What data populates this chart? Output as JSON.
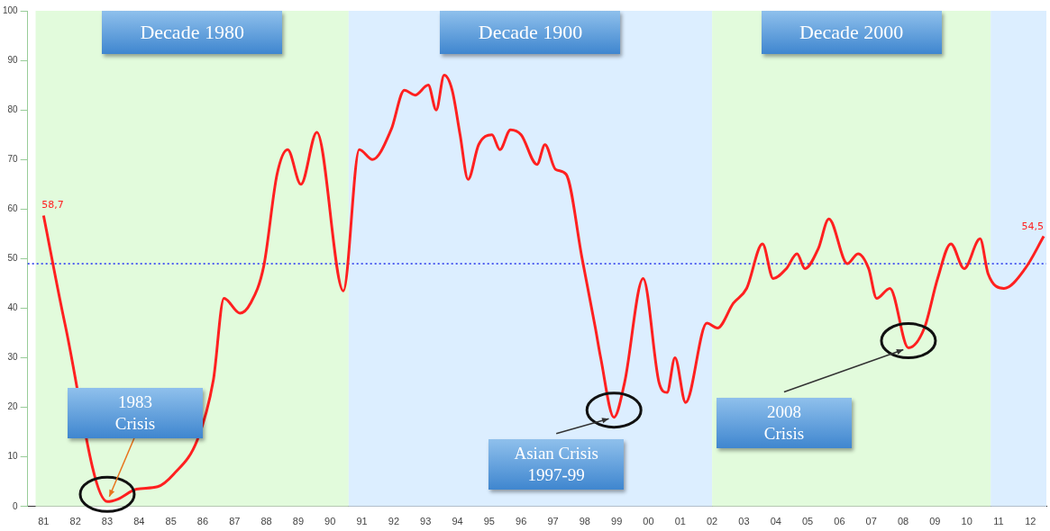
{
  "chart_data": {
    "type": "line",
    "x": [
      "1981-07",
      "1982-03",
      "1983-07",
      "1983-11",
      "1984-06",
      "1985-02",
      "1985-08",
      "1986-05",
      "1986-11",
      "1987-03",
      "1987-09",
      "1988-01",
      "1988-06",
      "1988-11",
      "1989-03",
      "1989-08",
      "1990-02",
      "1990-12",
      "1991-06",
      "1991-11",
      "1992-06",
      "1992-11",
      "1993-03",
      "1993-08",
      "1993-11",
      "1994-02",
      "1994-05",
      "1994-08",
      "1994-11",
      "1995-03",
      "1995-08",
      "1995-11",
      "1996-03",
      "1996-07",
      "1997-01",
      "1997-04",
      "1997-08",
      "1997-12",
      "1998-06",
      "1998-11",
      "1999-01",
      "1999-06",
      "1999-10",
      "2000-05",
      "2000-11",
      "2001-02",
      "2001-05",
      "2001-09",
      "2002-05",
      "2002-09",
      "2003-03",
      "2003-08",
      "2004-02",
      "2004-06",
      "2004-11",
      "2005-03",
      "2005-06",
      "2005-11",
      "2006-03",
      "2006-10",
      "2007-02",
      "2007-06",
      "2007-09",
      "2008-02",
      "2008-09",
      "2009-03",
      "2009-08",
      "2010-01",
      "2010-06",
      "2010-12",
      "2011-03",
      "2011-09",
      "2012-05",
      "2012-12"
    ],
    "series": [
      {
        "color": "#ff2020",
        "values": [
          58.7,
          37,
          1,
          1.5,
          3.5,
          4,
          6.5,
          13.5,
          25.5,
          42,
          39,
          41,
          48.5,
          67,
          72,
          65,
          75.5,
          43.5,
          72,
          70,
          76,
          84,
          83,
          85,
          80,
          87,
          84,
          75,
          66,
          73,
          75,
          72,
          76,
          75,
          69,
          73,
          68,
          67,
          50,
          36,
          30,
          18,
          25,
          46,
          25,
          23,
          30,
          21,
          37,
          36,
          41,
          44,
          53,
          46,
          48,
          51,
          48,
          52,
          58,
          49,
          51,
          48,
          42,
          44,
          32,
          36,
          46,
          53,
          48,
          54,
          47,
          44,
          48,
          54.5
        ],
        "value_labels": [
          "58,7",
          null,
          null,
          null,
          null,
          null,
          null,
          null,
          null,
          null,
          null,
          null,
          null,
          null,
          null,
          null,
          null,
          null,
          null,
          null,
          null,
          null,
          null,
          null,
          null,
          null,
          null,
          null,
          null,
          null,
          null,
          null,
          null,
          null,
          null,
          null,
          null,
          null,
          null,
          null,
          null,
          null,
          null,
          null,
          null,
          null,
          null,
          null,
          null,
          null,
          null,
          null,
          null,
          null,
          null,
          null,
          null,
          null,
          null,
          null,
          null,
          null,
          null,
          null,
          null,
          null,
          null,
          null,
          null,
          null,
          null,
          null,
          null,
          "54,5"
        ]
      }
    ],
    "xlim": [
      "1981-01",
      "2013-01"
    ],
    "xticks": [
      {
        "value": "1981-07",
        "label": "81"
      },
      {
        "value": "1982-07",
        "label": "82"
      },
      {
        "value": "1983-07",
        "label": "83"
      },
      {
        "value": "1984-07",
        "label": "84"
      },
      {
        "value": "1985-07",
        "label": "85"
      },
      {
        "value": "1986-07",
        "label": "86"
      },
      {
        "value": "1987-07",
        "label": "87"
      },
      {
        "value": "1988-07",
        "label": "88"
      },
      {
        "value": "1989-07",
        "label": "89"
      },
      {
        "value": "1990-07",
        "label": "90"
      },
      {
        "value": "1991-07",
        "label": "91"
      },
      {
        "value": "1992-07",
        "label": "92"
      },
      {
        "value": "1993-07",
        "label": "93"
      },
      {
        "value": "1994-07",
        "label": "94"
      },
      {
        "value": "1995-07",
        "label": "95"
      },
      {
        "value": "1996-07",
        "label": "96"
      },
      {
        "value": "1997-07",
        "label": "97"
      },
      {
        "value": "1998-07",
        "label": "98"
      },
      {
        "value": "1999-07",
        "label": "99"
      },
      {
        "value": "2000-07",
        "label": "00"
      },
      {
        "value": "2001-07",
        "label": "01"
      },
      {
        "value": "2002-07",
        "label": "02"
      },
      {
        "value": "2003-07",
        "label": "03"
      },
      {
        "value": "2004-07",
        "label": "04"
      },
      {
        "value": "2005-07",
        "label": "05"
      },
      {
        "value": "2006-07",
        "label": "06"
      },
      {
        "value": "2007-07",
        "label": "07"
      },
      {
        "value": "2008-07",
        "label": "08"
      },
      {
        "value": "2009-07",
        "label": "09"
      },
      {
        "value": "2010-07",
        "label": "10"
      },
      {
        "value": "2011-07",
        "label": "11"
      },
      {
        "value": "2012-07",
        "label": "12"
      }
    ],
    "ylim": [
      0,
      100
    ],
    "yticks": [
      0,
      10,
      20,
      30,
      40,
      50,
      60,
      70,
      80,
      90,
      100
    ],
    "grid": false,
    "legend": false,
    "marker": "none",
    "line_style": "solid",
    "bands": [
      {
        "axis": "x",
        "from": "1981-04",
        "to": "1991-02",
        "label": "Decade 1980",
        "color": "#e2fbdc"
      },
      {
        "axis": "x",
        "from": "1991-02",
        "to": "2002-07",
        "label": "Decade 1900",
        "color": "#dceeff"
      },
      {
        "axis": "x",
        "from": "2002-07",
        "to": "2011-04",
        "label": "Decade 2000",
        "color": "#e2fbdc"
      },
      {
        "axis": "x",
        "from": "2011-04",
        "to": "2013-01",
        "color": "#dceeff"
      }
    ],
    "ref_lines": [
      {
        "axis": "y",
        "value": 49,
        "color": "#5060f0",
        "line_style": "dotted"
      }
    ],
    "annotations": [
      {
        "text": "1983\nCrisis",
        "x": "1983-07",
        "y": 1
      },
      {
        "text": "Asian Crisis\n1997-99",
        "x": "1999-06",
        "y": 18
      },
      {
        "text": "2008\nCrisis",
        "x": "2008-09",
        "y": 32
      }
    ]
  }
}
